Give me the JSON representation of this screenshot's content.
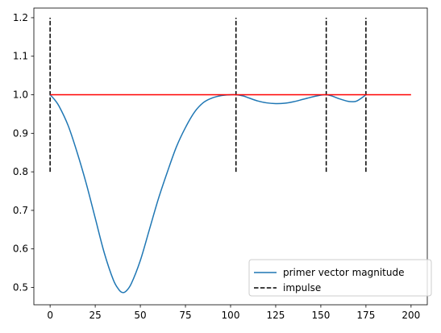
{
  "chart_data": {
    "type": "line",
    "title": "",
    "xlabel": "",
    "ylabel": "",
    "xlim": [
      -9,
      209
    ],
    "ylim": [
      0.455,
      1.225
    ],
    "x_ticks": [
      0,
      25,
      50,
      75,
      100,
      125,
      150,
      175,
      200
    ],
    "y_ticks": [
      0.5,
      0.6,
      0.7,
      0.8,
      0.9,
      1.0,
      1.1,
      1.2
    ],
    "x_tick_labels": [
      "0",
      "25",
      "50",
      "75",
      "100",
      "125",
      "150",
      "175",
      "200"
    ],
    "y_tick_labels": [
      "0.5",
      "0.6",
      "0.7",
      "0.8",
      "0.9",
      "1.0",
      "1.1",
      "1.2"
    ],
    "grid": false,
    "legend_position": "lower-right",
    "series": [
      {
        "name": "primer vector magnitude",
        "style": "solid",
        "color": "#1f77b4",
        "x": [
          0,
          2,
          5,
          10,
          15,
          20,
          25,
          30,
          35,
          38,
          40,
          42,
          45,
          50,
          55,
          60,
          65,
          70,
          75,
          80,
          85,
          90,
          95,
          100,
          103,
          107,
          110,
          115,
          120,
          125,
          130,
          135,
          140,
          145,
          150,
          153,
          156,
          160,
          165,
          168,
          170,
          173,
          175
        ],
        "y": [
          1.0,
          0.99,
          0.97,
          0.92,
          0.85,
          0.77,
          0.68,
          0.59,
          0.52,
          0.495,
          0.487,
          0.49,
          0.51,
          0.57,
          0.65,
          0.73,
          0.8,
          0.865,
          0.915,
          0.955,
          0.98,
          0.992,
          0.998,
          1.0,
          1.0,
          0.997,
          0.992,
          0.984,
          0.979,
          0.977,
          0.978,
          0.982,
          0.988,
          0.994,
          0.999,
          1.0,
          0.997,
          0.99,
          0.983,
          0.982,
          0.984,
          0.993,
          1.0
        ]
      },
      {
        "name": "",
        "style": "solid",
        "color": "#ff0000",
        "x": [
          0,
          200
        ],
        "y": [
          1.0,
          1.0
        ]
      }
    ],
    "impulses": {
      "name": "impulse",
      "style": "dashed",
      "color": "#000000",
      "x": [
        0,
        103,
        153,
        175
      ],
      "y_range": [
        0.8,
        1.2
      ]
    },
    "legend": [
      {
        "label": "primer vector magnitude",
        "color": "#1f77b4",
        "style": "solid"
      },
      {
        "label": "impulse",
        "color": "#000000",
        "style": "dashed"
      }
    ]
  }
}
